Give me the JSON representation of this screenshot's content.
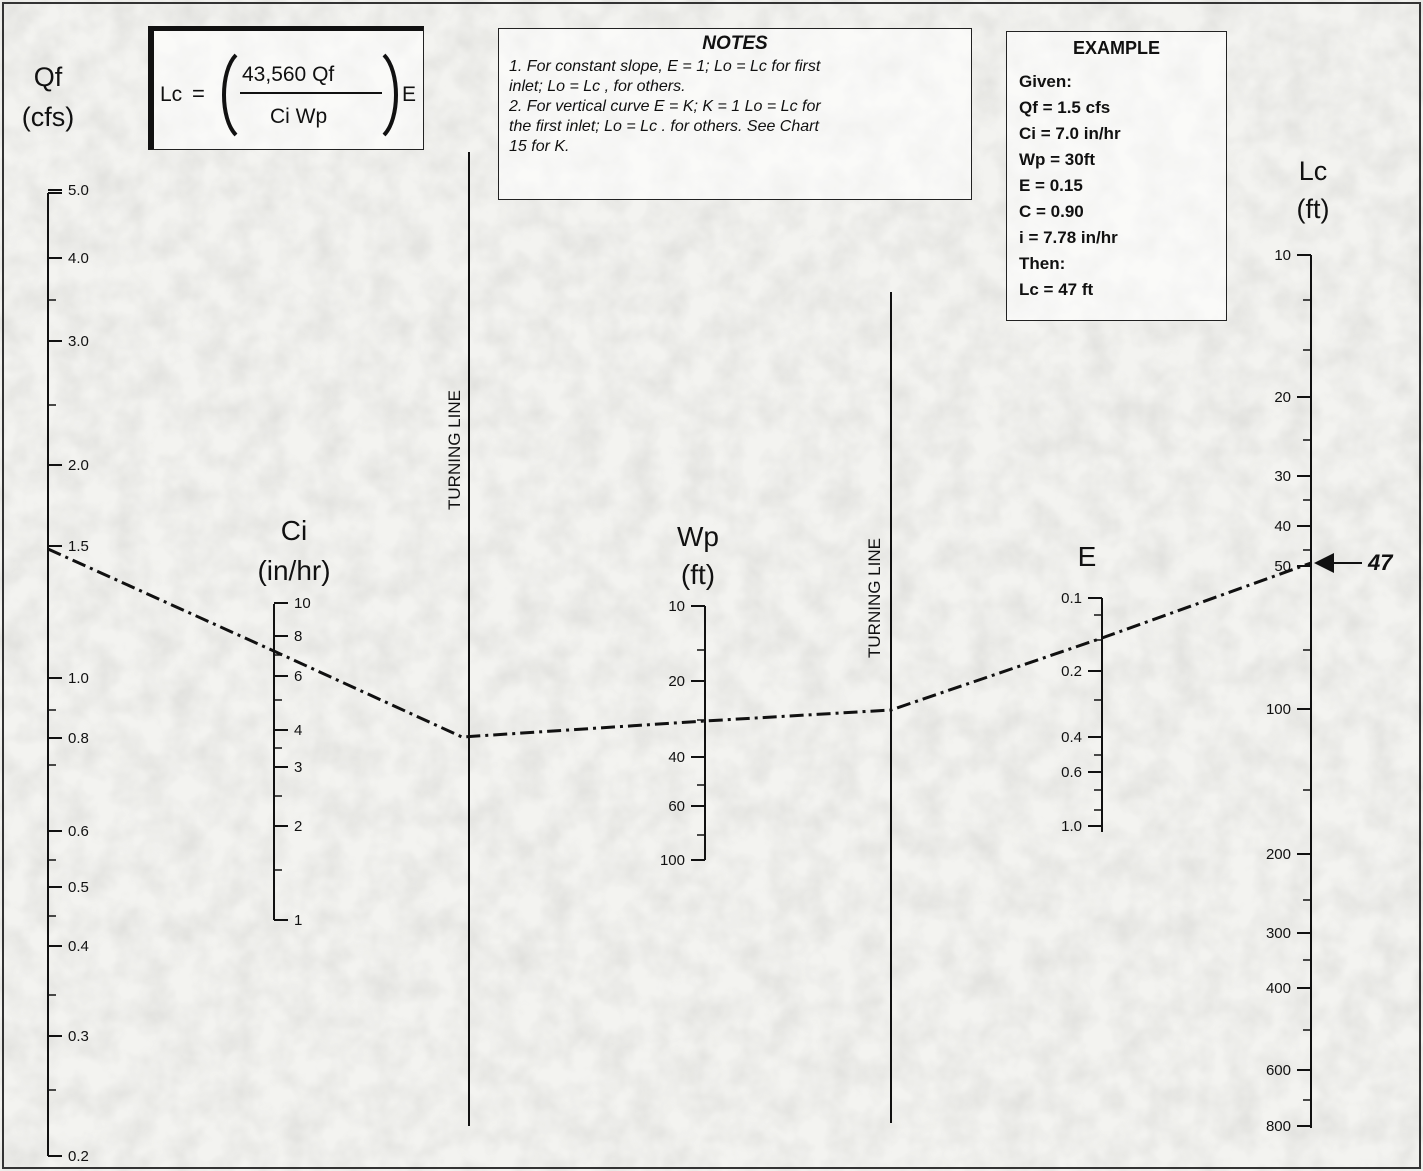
{
  "formula": {
    "lhs": "Lc",
    "equals": "=",
    "numerator": "43,560  Qf",
    "denominator": "Ci  Wp",
    "factor": "E"
  },
  "notes": {
    "title": "NOTES",
    "line1": "1. For constant slope, E = 1; Lo = Lc for first",
    "line2": "inlet;  Lo = Lc , for others.",
    "line3": "2. For vertical curve E = K;  K = 1  Lo = Lc for",
    "line4": "the first inlet; Lo = Lc . for others.  See Chart",
    "line5": "15 for K."
  },
  "example": {
    "title": "EXAMPLE",
    "lines": [
      "Given:",
      "Qf = 1.5 cfs",
      "Ci = 7.0 in/hr",
      "Wp = 30ft",
      "E = 0.15",
      "C = 0.90",
      "i = 7.78 in/hr",
      "Then:",
      "Lc = 47 ft"
    ]
  },
  "scales": {
    "qf": {
      "name": "Qf",
      "unit": "(cfs)",
      "ticks": [
        "5.0",
        "4.0",
        "3.0",
        "2.0",
        "1.5",
        "1.0",
        "0.8",
        "0.6",
        "0.5",
        "0.4",
        "0.3",
        "0.2"
      ]
    },
    "ci": {
      "name": "Ci",
      "unit": "(in/hr)",
      "ticks": [
        "10",
        "8",
        "6",
        "4",
        "3",
        "2",
        "1"
      ]
    },
    "wp": {
      "name": "Wp",
      "unit": "(ft)",
      "ticks": [
        "10",
        "20",
        "40",
        "60",
        "100"
      ]
    },
    "e": {
      "name": "E",
      "ticks": [
        "0.1",
        "0.2",
        "0.4",
        "0.6",
        "1.0"
      ]
    },
    "lc": {
      "name": "Lc",
      "unit": "(ft)",
      "ticks": [
        "10",
        "20",
        "30",
        "40",
        "50",
        "100",
        "200",
        "300",
        "400",
        "600",
        "800"
      ]
    }
  },
  "turning_lines": {
    "left": "TURNING LINE",
    "right": "TURNING LINE"
  },
  "result": {
    "value": "47"
  }
}
